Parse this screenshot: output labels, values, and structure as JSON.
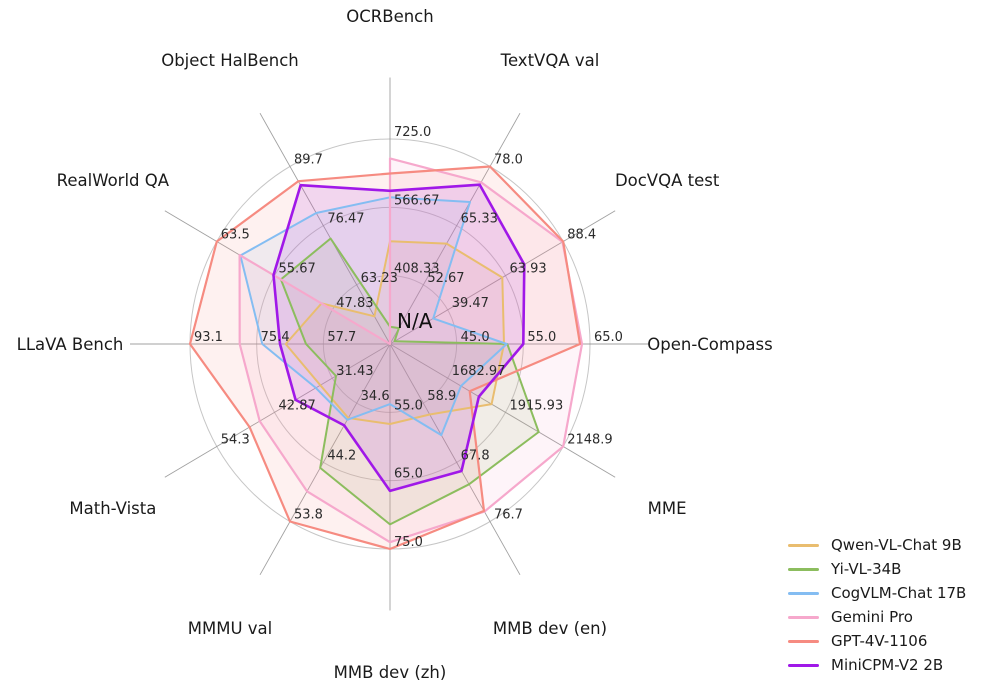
{
  "chart_data": {
    "type": "radar",
    "title": "",
    "center_label": "N/A",
    "grid": {
      "rings": 3,
      "ring_fractions": [
        0.3333,
        0.6667,
        1.0
      ],
      "spoke_extent": 1.3,
      "axis_label_extent": 1.6,
      "ring_color": "#c6c6c6",
      "spoke_color": "#909090",
      "fill_opacity": 0.12
    },
    "axes": [
      {
        "label": "OCRBench",
        "min": 250,
        "max": 725,
        "ticks": [
          "408.33",
          "566.67",
          "725.0"
        ]
      },
      {
        "label": "TextVQA val",
        "min": 40,
        "max": 78,
        "ticks": [
          "52.67",
          "65.33",
          "78.0"
        ]
      },
      {
        "label": "DocVQA test",
        "min": 15,
        "max": 88.4,
        "ticks": [
          "39.47",
          "63.93",
          "88.4"
        ]
      },
      {
        "label": "Open-Compass",
        "min": 35,
        "max": 65,
        "ticks": [
          "45.0",
          "55.0",
          "65.0"
        ]
      },
      {
        "label": "MME",
        "min": 1450,
        "max": 2148.9,
        "ticks": [
          "1682.97",
          "1915.93",
          "2148.9"
        ]
      },
      {
        "label": "MMB dev (en)",
        "min": 50,
        "max": 76.7,
        "ticks": [
          "58.9",
          "67.8",
          "76.7"
        ]
      },
      {
        "label": "MMB dev (zh)",
        "min": 45,
        "max": 75,
        "ticks": [
          "55.0",
          "65.0",
          "75.0"
        ]
      },
      {
        "label": "MMMU val",
        "min": 25,
        "max": 53.8,
        "ticks": [
          "34.6",
          "44.2",
          "53.8"
        ]
      },
      {
        "label": "Math-Vista",
        "min": 20,
        "max": 54.3,
        "ticks": [
          "31.43",
          "42.87",
          "54.3"
        ]
      },
      {
        "label": "LLaVA Bench",
        "min": 40,
        "max": 93.1,
        "ticks": [
          "57.7",
          "75.4",
          "93.1"
        ]
      },
      {
        "label": "RealWorld QA",
        "min": 40,
        "max": 63.5,
        "ticks": [
          "47.83",
          "55.67",
          "63.5"
        ]
      },
      {
        "label": "Object HalBench",
        "min": 50,
        "max": 89.7,
        "ticks": [
          "63.23",
          "76.47",
          "89.7"
        ]
      }
    ],
    "series": [
      {
        "name": "Qwen-VL-Chat 9B",
        "color": "#e9bd6f",
        "line_width": 2,
        "values": [
          488,
          61.5,
          62.6,
          52.1,
          1860.0,
          60.6,
          56.7,
          37.0,
          33.8,
          67.7,
          49.3,
          56.2
        ]
      },
      {
        "name": "Yi-VL-34B",
        "color": "#8cbd5e",
        "line_width": 2,
        "values": [
          290,
          43.4,
          16.9,
          52.6,
          2050.2,
          71.1,
          71.4,
          45.1,
          30.7,
          62.3,
          54.8,
          73.6
        ]
      },
      {
        "name": "CogVLM-Chat 17B",
        "color": "#84bdf2",
        "line_width": 2,
        "values": [
          590,
          70.4,
          33.3,
          52.5,
          1736.6,
          63.7,
          53.8,
          37.3,
          34.7,
          73.9,
          60.3,
          79.3
        ]
      },
      {
        "name": "Gemini Pro",
        "color": "#f6a8cc",
        "line_width": 2.2,
        "values": [
          680,
          74.6,
          88.1,
          63.8,
          2148.9,
          75.2,
          74.0,
          48.9,
          45.8,
          79.9,
          60.4,
          null
        ]
      },
      {
        "name": "GPT-4V-1106",
        "color": "#f68b81",
        "line_width": 2.2,
        "values": [
          645,
          78.0,
          88.4,
          63.5,
          1771.5,
          75.1,
          75.0,
          53.8,
          47.8,
          93.1,
          63.5,
          86.4
        ]
      },
      {
        "name": "MiniCPM-V2 2B",
        "color": "#a018e8",
        "line_width": 2.6,
        "values": [
          605,
          74.1,
          71.9,
          55.0,
          1808.6,
          69.1,
          66.5,
          38.2,
          38.7,
          69.2,
          55.8,
          85.5
        ]
      }
    ],
    "legend_position": "bottom-right",
    "na_policy": "missing values plotted at center"
  }
}
